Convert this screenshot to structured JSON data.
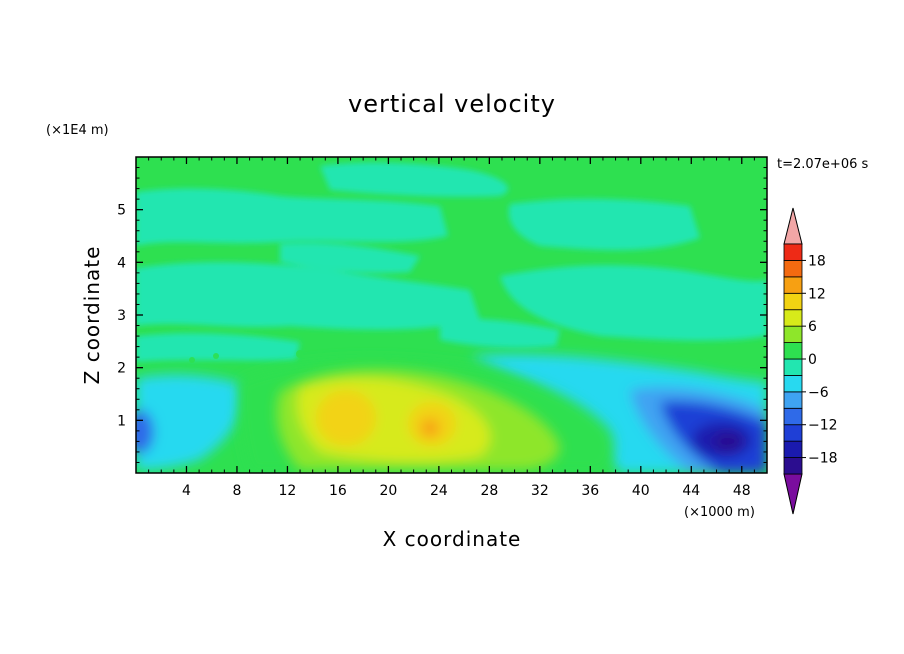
{
  "chart_data": {
    "type": "heatmap",
    "title": "vertical velocity",
    "xlabel": "X coordinate",
    "ylabel": "Z coordinate",
    "x_unit": "(×1000 m)",
    "y_unit": "(×1E4 m)",
    "time_label": "t=2.07e+06 s",
    "xlim": [
      0,
      50
    ],
    "ylim": [
      0,
      6
    ],
    "x_ticks": [
      "4",
      "8",
      "12",
      "16",
      "20",
      "24",
      "28",
      "32",
      "36",
      "40",
      "44",
      "48"
    ],
    "y_ticks": [
      "1",
      "2",
      "3",
      "4",
      "5"
    ],
    "colorbar": {
      "tick_labels": [
        "18",
        "12",
        "6",
        "0",
        "−6",
        "−12",
        "−18"
      ],
      "levels": [
        -21,
        -18,
        -15,
        -12,
        -9,
        -6,
        -3,
        0,
        3,
        6,
        9,
        12,
        15,
        18,
        21
      ],
      "colors": [
        "#7a0d9e",
        "#2b0d8f",
        "#1a1aae",
        "#1f3fd6",
        "#2f6ae8",
        "#3fa3f2",
        "#28d9f0",
        "#22e6b0",
        "#2ee050",
        "#8ee62a",
        "#d7ea1a",
        "#f2d312",
        "#f7a012",
        "#f46a10",
        "#ee2a16",
        "#d61a1a",
        "#f2a6a6"
      ]
    },
    "features": [
      {
        "x": 18,
        "z": 0.9,
        "value": 9
      },
      {
        "x": 23.5,
        "z": 0.8,
        "value": 12
      },
      {
        "x": 46,
        "z": 0.55,
        "value": -15
      },
      {
        "x": 0.5,
        "z": 0.7,
        "value": -9
      },
      {
        "x": 42,
        "z": 1.5,
        "value": -5
      }
    ]
  }
}
